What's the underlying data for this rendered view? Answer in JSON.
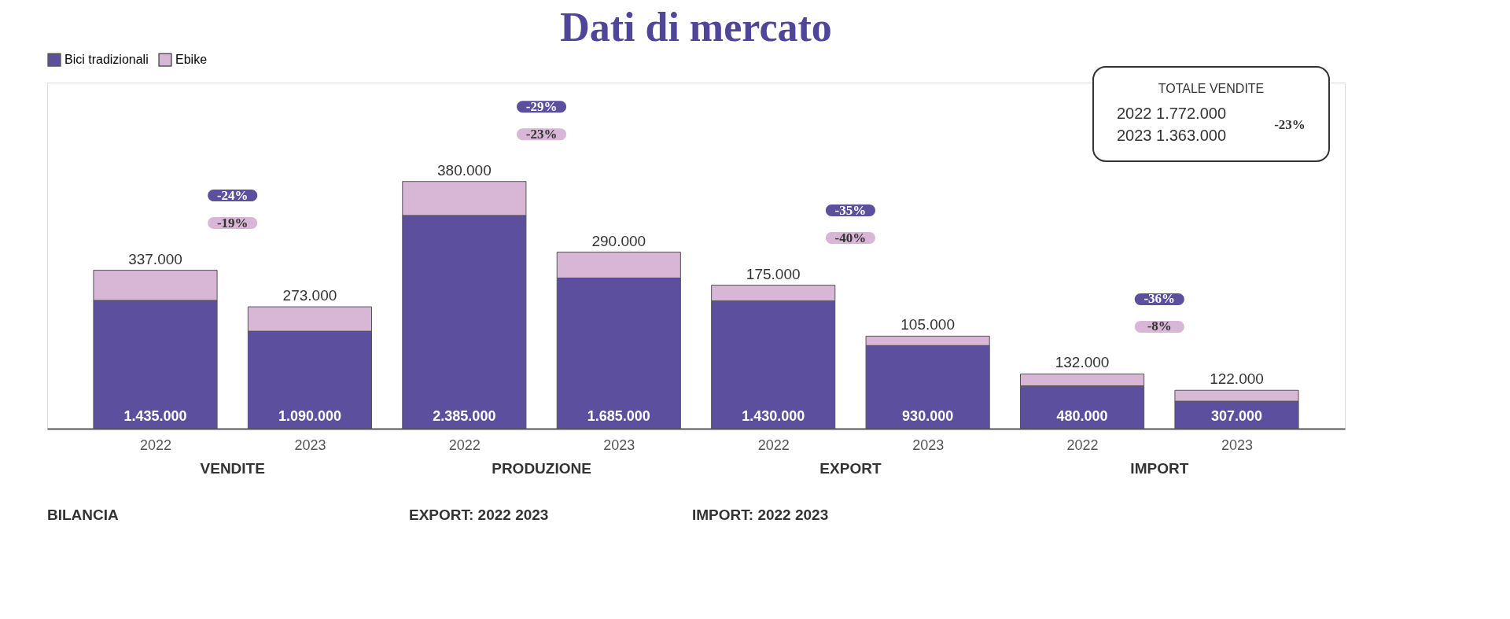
{
  "chart_data": {
    "type": "bar",
    "title": "Dati di mercato",
    "stacked": true,
    "legend": "top",
    "tick_labels": "x",
    "grid": false,
    "categories": [
      "2022",
      "2023",
      "2022",
      "2023",
      "2022",
      "2023",
      "2022",
      "2023"
    ],
    "series": [
      {
        "name": "Bici tradizionali",
        "color": "#5b4f9e",
        "values": [
          1435000,
          1090000,
          2385000,
          1685000,
          1430000,
          930000,
          480000,
          307000
        ],
        "value_labels": [
          "1.435.000",
          "1.090.000",
          "2.385.000",
          "1.685.000",
          "1.430.000",
          "930.000",
          "480.000",
          "307.000"
        ]
      },
      {
        "name": "Ebike",
        "color": "#d8b7d6",
        "values": [
          337000,
          273000,
          380000,
          290000,
          175000,
          105000,
          132000,
          122000
        ],
        "value_labels": [
          "337.000",
          "273.000",
          "380.000",
          "290.000",
          "175.000",
          "105.000",
          "132.000",
          "122.000"
        ]
      }
    ],
    "annotations": [
      "VENDITE",
      "PRODUZIONE",
      "EXPORT",
      "IMPORT",
      "-24%",
      "-19%",
      "-29%",
      "-23%",
      "-35%",
      "-40%",
      "-36%",
      "-8%",
      "TOTALE VENDITE",
      "2022 1.772.000",
      "2023 1.363.000",
      "-23%",
      "BILANCIA",
      "EXPORT: 2022 2023",
      "IMPORT: 2022 2023"
    ]
  }
}
